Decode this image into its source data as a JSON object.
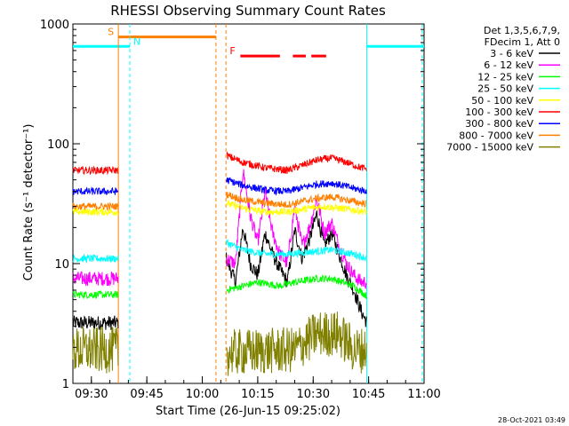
{
  "chart_data": {
    "type": "line",
    "title": "RHESSI Observing Summary Count Rates",
    "xlabel": "Start Time (26-Jun-15 09:25:02)",
    "ylabel": "Count Rate (s⁻¹ detector⁻¹)",
    "x_unit": "minutes after 09:25:02",
    "xlim_minutes": [
      0,
      95
    ],
    "ylim": [
      1,
      1000
    ],
    "y_scale": "log",
    "x_ticks": [
      {
        "label": "09:30",
        "minute": 5
      },
      {
        "label": "09:45",
        "minute": 20
      },
      {
        "label": "10:00",
        "minute": 35
      },
      {
        "label": "10:15",
        "minute": 50
      },
      {
        "label": "10:30",
        "minute": 65
      },
      {
        "label": "10:45",
        "minute": 80
      },
      {
        "label": "11:00",
        "minute": 95
      }
    ],
    "y_ticks": [
      {
        "label": "1",
        "value": 1
      },
      {
        "label": "10",
        "value": 10
      },
      {
        "label": "100",
        "value": 100
      },
      {
        "label": "1000",
        "value": 1000
      }
    ],
    "legend_header": [
      "Det 1,3,5,6,7,9,",
      "FDecim 1, Att 0"
    ],
    "legend_placement": "right",
    "data_gaps_minutes": [
      [
        12.3,
        41.4
      ],
      [
        79.5,
        95
      ]
    ],
    "series": [
      {
        "name": "3 - 6 keV",
        "color": "#000000",
        "points": [
          [
            0,
            3.2
          ],
          [
            12,
            3.2
          ],
          [
            41.5,
            11
          ],
          [
            44,
            7
          ],
          [
            46,
            20
          ],
          [
            48,
            10
          ],
          [
            50,
            8
          ],
          [
            52,
            18
          ],
          [
            54,
            12
          ],
          [
            56,
            9
          ],
          [
            58,
            7
          ],
          [
            60,
            19
          ],
          [
            62,
            11
          ],
          [
            64,
            16
          ],
          [
            66,
            26
          ],
          [
            68,
            14
          ],
          [
            70,
            18
          ],
          [
            72,
            12
          ],
          [
            74,
            8
          ],
          [
            76,
            6
          ],
          [
            78,
            4
          ],
          [
            80,
            3
          ],
          [
            88,
            3.2
          ],
          [
            95,
            3.2
          ]
        ]
      },
      {
        "name": "6 - 12 keV",
        "color": "#ff00ff",
        "points": [
          [
            0,
            7.5
          ],
          [
            12,
            7.5
          ],
          [
            41.5,
            11
          ],
          [
            44,
            10
          ],
          [
            46,
            60
          ],
          [
            48,
            25
          ],
          [
            50,
            15
          ],
          [
            52,
            40
          ],
          [
            54,
            18
          ],
          [
            56,
            12
          ],
          [
            58,
            10
          ],
          [
            60,
            30
          ],
          [
            62,
            14
          ],
          [
            64,
            20
          ],
          [
            66,
            35
          ],
          [
            68,
            18
          ],
          [
            70,
            22
          ],
          [
            72,
            14
          ],
          [
            74,
            10
          ],
          [
            76,
            8
          ],
          [
            78,
            7
          ],
          [
            80,
            7
          ],
          [
            88,
            7.5
          ],
          [
            95,
            7.5
          ]
        ]
      },
      {
        "name": "12 - 25 keV",
        "color": "#00ff00",
        "points": [
          [
            0,
            5.5
          ],
          [
            12,
            5.5
          ],
          [
            41.5,
            6
          ],
          [
            46,
            6.5
          ],
          [
            50,
            7
          ],
          [
            56,
            6.5
          ],
          [
            60,
            7
          ],
          [
            66,
            7.5
          ],
          [
            70,
            7.5
          ],
          [
            76,
            6.5
          ],
          [
            80,
            5.2
          ],
          [
            88,
            5.5
          ],
          [
            95,
            5.5
          ]
        ]
      },
      {
        "name": "25 - 50 keV",
        "color": "#00ffff",
        "points": [
          [
            0,
            11
          ],
          [
            12,
            11
          ],
          [
            41.5,
            15
          ],
          [
            46,
            13
          ],
          [
            52,
            12
          ],
          [
            58,
            12
          ],
          [
            64,
            12.5
          ],
          [
            70,
            13
          ],
          [
            76,
            12
          ],
          [
            80,
            11
          ],
          [
            88,
            11
          ],
          [
            95,
            11
          ]
        ]
      },
      {
        "name": "50 - 100 keV",
        "color": "#ffff00",
        "points": [
          [
            0,
            27
          ],
          [
            12,
            27
          ],
          [
            41.5,
            32
          ],
          [
            46,
            29
          ],
          [
            52,
            27
          ],
          [
            58,
            27
          ],
          [
            64,
            29
          ],
          [
            68,
            30
          ],
          [
            72,
            29
          ],
          [
            76,
            28
          ],
          [
            80,
            27
          ],
          [
            88,
            27
          ],
          [
            95,
            27
          ]
        ]
      },
      {
        "name": "100 - 300 keV",
        "color": "#ff0000",
        "points": [
          [
            0,
            60
          ],
          [
            12,
            60
          ],
          [
            41.5,
            80
          ],
          [
            46,
            70
          ],
          [
            52,
            63
          ],
          [
            58,
            60
          ],
          [
            62,
            66
          ],
          [
            66,
            73
          ],
          [
            70,
            76
          ],
          [
            74,
            70
          ],
          [
            78,
            63
          ],
          [
            82,
            60
          ],
          [
            88,
            58
          ],
          [
            95,
            55
          ]
        ]
      },
      {
        "name": "300 - 800 keV",
        "color": "#0000ff",
        "points": [
          [
            0,
            40
          ],
          [
            12,
            40
          ],
          [
            41.5,
            50
          ],
          [
            46,
            45
          ],
          [
            52,
            41
          ],
          [
            58,
            40
          ],
          [
            62,
            43
          ],
          [
            66,
            46
          ],
          [
            70,
            47
          ],
          [
            74,
            44
          ],
          [
            78,
            41
          ],
          [
            82,
            40
          ],
          [
            88,
            39
          ],
          [
            95,
            38
          ]
        ]
      },
      {
        "name": "800 - 7000 keV",
        "color": "#ff8000",
        "points": [
          [
            0,
            30
          ],
          [
            12,
            30
          ],
          [
            41.5,
            38
          ],
          [
            46,
            34
          ],
          [
            52,
            32
          ],
          [
            58,
            31
          ],
          [
            62,
            33
          ],
          [
            66,
            35
          ],
          [
            70,
            36
          ],
          [
            74,
            34
          ],
          [
            78,
            32
          ],
          [
            82,
            31
          ],
          [
            88,
            31
          ],
          [
            95,
            30
          ]
        ]
      },
      {
        "name": "7000 - 15000 keV",
        "color": "#808000",
        "points": [
          [
            0,
            1.9
          ],
          [
            12,
            1.9
          ],
          [
            41.5,
            1.8
          ],
          [
            60,
            1.9
          ],
          [
            66,
            2.6
          ],
          [
            72,
            2.6
          ],
          [
            76,
            1.9
          ],
          [
            80,
            1.9
          ],
          [
            95,
            1.9
          ]
        ]
      }
    ],
    "annotations": [
      {
        "flag": "S",
        "color": "#ff8000",
        "x_range_minutes": [
          12.3,
          38.7
        ],
        "value": 780
      },
      {
        "flag": "N",
        "color": "#00ffff",
        "x_range_minutes": [
          0,
          15.4
        ],
        "value": 650
      },
      {
        "flag": "F",
        "color": "#ff0000",
        "segments_minutes": [
          [
            45.3,
            56
          ],
          [
            59.5,
            63
          ],
          [
            64.5,
            68.5
          ]
        ],
        "value": 540
      }
    ],
    "background_band": {
      "color": "#00ffff",
      "x_range_minutes": [
        79.5,
        95
      ],
      "value": 650
    },
    "vertical_lines": [
      {
        "minute": 12.3,
        "color": "#ff8000",
        "style": "solid"
      },
      {
        "minute": 15.4,
        "color": "#00ffff",
        "style": "dashed"
      },
      {
        "minute": 38.7,
        "color": "#ff8000",
        "style": "dashed"
      },
      {
        "minute": 41.4,
        "color": "#ff8000",
        "style": "dashed"
      },
      {
        "minute": 79.5,
        "color": "#00ffff",
        "style": "solid"
      },
      {
        "minute": 94.5,
        "color": "#00ffff",
        "style": "dashed"
      }
    ]
  },
  "footer_date": "28-Oct-2021 03:49"
}
